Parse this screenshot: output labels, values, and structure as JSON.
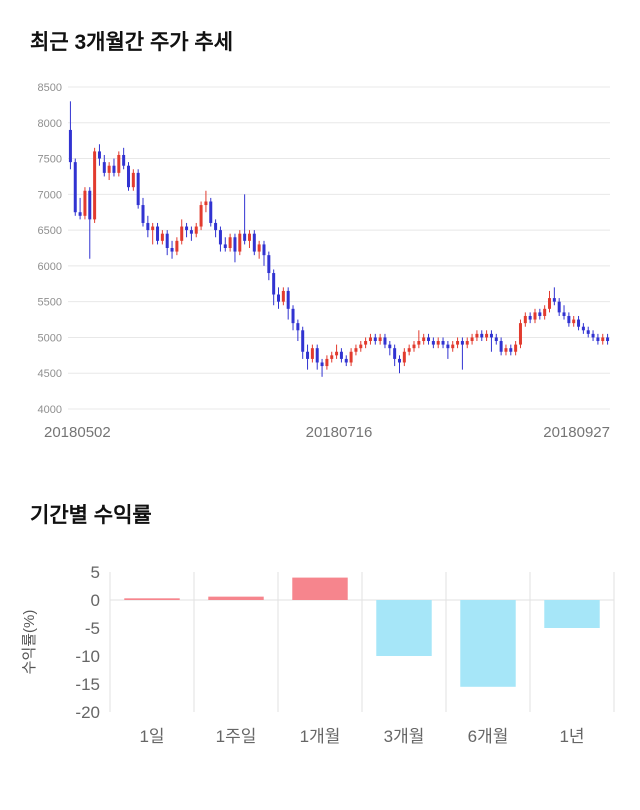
{
  "page": {
    "background": "#ffffff"
  },
  "chart_data": [
    {
      "type": "candlestick",
      "title": "최근 3개월간 주가 추세",
      "ylim": [
        4000,
        8500
      ],
      "ytick_step": 500,
      "yticks": [
        4000,
        4500,
        5000,
        5500,
        6000,
        6500,
        7000,
        7500,
        8000,
        8500
      ],
      "xtick_labels": [
        "20180502",
        "20180716",
        "20180927"
      ],
      "up_color": "#e23b2e",
      "down_color": "#3133d1",
      "grid_color": "#e8e8e8",
      "axis_text_color": "#8f8f8f",
      "xlabel_color": "#757575",
      "candles": [
        [
          7900,
          8300,
          7350,
          7450
        ],
        [
          7450,
          7500,
          6700,
          6750
        ],
        [
          6750,
          6950,
          6650,
          6700
        ],
        [
          6700,
          7100,
          6650,
          7050
        ],
        [
          7050,
          7100,
          6100,
          6650
        ],
        [
          6650,
          7650,
          6600,
          7600
        ],
        [
          7600,
          7700,
          7400,
          7500
        ],
        [
          7450,
          7550,
          7250,
          7300
        ],
        [
          7300,
          7450,
          7200,
          7400
        ],
        [
          7400,
          7500,
          7250,
          7300
        ],
        [
          7300,
          7600,
          7250,
          7550
        ],
        [
          7550,
          7650,
          7350,
          7400
        ],
        [
          7400,
          7450,
          7050,
          7100
        ],
        [
          7100,
          7350,
          7050,
          7300
        ],
        [
          7300,
          7350,
          6800,
          6850
        ],
        [
          6850,
          6950,
          6550,
          6600
        ],
        [
          6600,
          6700,
          6400,
          6500
        ],
        [
          6500,
          6600,
          6300,
          6550
        ],
        [
          6550,
          6600,
          6300,
          6350
        ],
        [
          6350,
          6500,
          6300,
          6450
        ],
        [
          6450,
          6500,
          6150,
          6250
        ],
        [
          6250,
          6350,
          6100,
          6200
        ],
        [
          6200,
          6400,
          6150,
          6350
        ],
        [
          6350,
          6650,
          6300,
          6550
        ],
        [
          6550,
          6600,
          6400,
          6500
        ],
        [
          6500,
          6550,
          6350,
          6450
        ],
        [
          6450,
          6600,
          6400,
          6550
        ],
        [
          6550,
          6900,
          6500,
          6850
        ],
        [
          6850,
          7050,
          6750,
          6900
        ],
        [
          6900,
          6950,
          6550,
          6600
        ],
        [
          6600,
          6650,
          6400,
          6500
        ],
        [
          6500,
          6550,
          6200,
          6300
        ],
        [
          6300,
          6400,
          6200,
          6250
        ],
        [
          6250,
          6450,
          6200,
          6400
        ],
        [
          6400,
          6450,
          6050,
          6200
        ],
        [
          6200,
          6500,
          6150,
          6450
        ],
        [
          6450,
          7000,
          6300,
          6350
        ],
        [
          6350,
          6500,
          6250,
          6450
        ],
        [
          6450,
          6500,
          6150,
          6200
        ],
        [
          6200,
          6350,
          6100,
          6300
        ],
        [
          6300,
          6350,
          6000,
          6150
        ],
        [
          6150,
          6200,
          5800,
          5900
        ],
        [
          5900,
          5950,
          5450,
          5600
        ],
        [
          5600,
          5700,
          5400,
          5500
        ],
        [
          5500,
          5700,
          5450,
          5650
        ],
        [
          5650,
          5700,
          5250,
          5400
        ],
        [
          5400,
          5450,
          5100,
          5200
        ],
        [
          5200,
          5250,
          4950,
          5100
        ],
        [
          5100,
          5150,
          4700,
          4800
        ],
        [
          4800,
          4900,
          4550,
          4700
        ],
        [
          4700,
          4900,
          4650,
          4850
        ],
        [
          4850,
          4900,
          4550,
          4650
        ],
        [
          4650,
          4700,
          4450,
          4600
        ],
        [
          4600,
          4750,
          4550,
          4700
        ],
        [
          4700,
          4800,
          4650,
          4750
        ],
        [
          4750,
          4900,
          4700,
          4800
        ],
        [
          4800,
          4850,
          4650,
          4700
        ],
        [
          4700,
          4750,
          4600,
          4650
        ],
        [
          4650,
          4850,
          4600,
          4800
        ],
        [
          4800,
          4900,
          4750,
          4850
        ],
        [
          4850,
          4950,
          4800,
          4900
        ],
        [
          4900,
          5000,
          4850,
          4950
        ],
        [
          4950,
          5050,
          4900,
          5000
        ],
        [
          5000,
          5050,
          4900,
          4950
        ],
        [
          4950,
          5050,
          4900,
          5000
        ],
        [
          5000,
          5050,
          4850,
          4900
        ],
        [
          4900,
          4950,
          4750,
          4850
        ],
        [
          4850,
          4900,
          4600,
          4700
        ],
        [
          4700,
          4750,
          4500,
          4650
        ],
        [
          4650,
          4850,
          4600,
          4800
        ],
        [
          4800,
          4900,
          4750,
          4850
        ],
        [
          4850,
          4950,
          4800,
          4900
        ],
        [
          4900,
          5100,
          4850,
          4950
        ],
        [
          4950,
          5050,
          4900,
          5000
        ],
        [
          5000,
          5050,
          4900,
          4950
        ],
        [
          4950,
          5000,
          4850,
          4900
        ],
        [
          4900,
          5000,
          4850,
          4950
        ],
        [
          4950,
          5000,
          4850,
          4900
        ],
        [
          4900,
          4950,
          4700,
          4850
        ],
        [
          4850,
          4950,
          4800,
          4900
        ],
        [
          4900,
          5000,
          4850,
          4950
        ],
        [
          4950,
          5000,
          4550,
          4900
        ],
        [
          4900,
          5000,
          4850,
          4950
        ],
        [
          4950,
          5050,
          4900,
          5000
        ],
        [
          5000,
          5100,
          4950,
          5050
        ],
        [
          5050,
          5100,
          4950,
          5000
        ],
        [
          5000,
          5100,
          4950,
          5050
        ],
        [
          5050,
          5100,
          4800,
          5000
        ],
        [
          5000,
          5050,
          4900,
          4950
        ],
        [
          4950,
          5000,
          4750,
          4800
        ],
        [
          4800,
          4900,
          4750,
          4850
        ],
        [
          4850,
          4900,
          4750,
          4800
        ],
        [
          4800,
          4950,
          4750,
          4900
        ],
        [
          4900,
          5250,
          4850,
          5200
        ],
        [
          5200,
          5350,
          5150,
          5300
        ],
        [
          5300,
          5350,
          5200,
          5250
        ],
        [
          5250,
          5400,
          5200,
          5350
        ],
        [
          5350,
          5400,
          5250,
          5300
        ],
        [
          5300,
          5450,
          5250,
          5400
        ],
        [
          5400,
          5650,
          5350,
          5550
        ],
        [
          5550,
          5700,
          5450,
          5500
        ],
        [
          5500,
          5550,
          5300,
          5350
        ],
        [
          5350,
          5450,
          5250,
          5300
        ],
        [
          5300,
          5350,
          5150,
          5200
        ],
        [
          5200,
          5300,
          5150,
          5250
        ],
        [
          5250,
          5300,
          5100,
          5150
        ],
        [
          5150,
          5200,
          5050,
          5100
        ],
        [
          5100,
          5150,
          5000,
          5050
        ],
        [
          5050,
          5100,
          4950,
          5000
        ],
        [
          5000,
          5050,
          4900,
          4950
        ],
        [
          4950,
          5050,
          4900,
          5000
        ],
        [
          5000,
          5050,
          4900,
          4950
        ]
      ]
    },
    {
      "type": "bar",
      "title": "기간별 수익률",
      "ylabel": "수익률(%)",
      "categories": [
        "1일",
        "1주일",
        "1개월",
        "3개월",
        "6개월",
        "1년"
      ],
      "values": [
        0.3,
        0.6,
        4,
        -10,
        -15.5,
        -5
      ],
      "ylim": [
        -20,
        5
      ],
      "ytick_step": 5,
      "yticks": [
        5,
        0,
        -5,
        -10,
        -15,
        -20
      ],
      "positive_color": "#f6858d",
      "negative_color": "#a6e6f8",
      "grid_color": "#e2e2e2",
      "axis_text_color": "#666666",
      "ylabel_color": "#555555",
      "grid": "vertical"
    }
  ]
}
